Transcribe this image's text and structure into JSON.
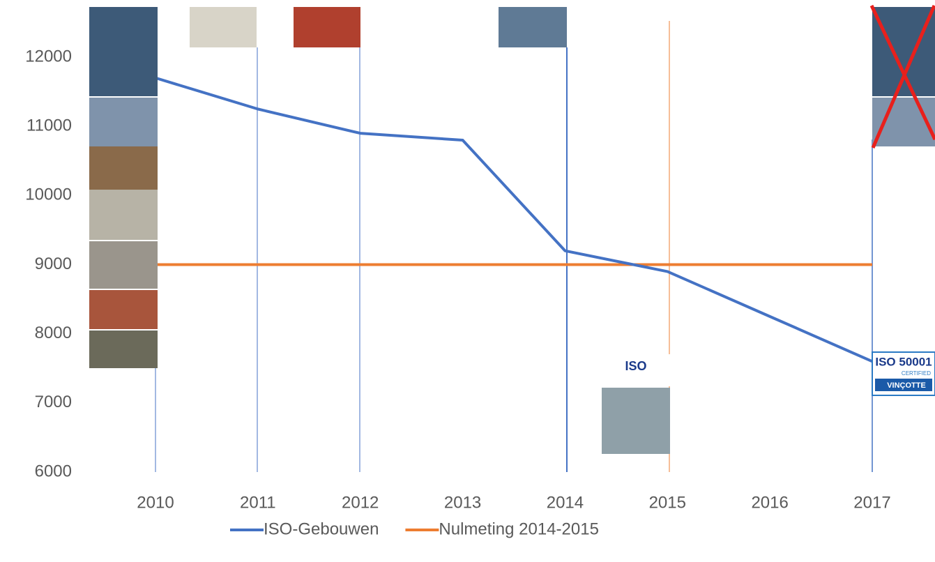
{
  "chart_data": {
    "type": "line",
    "categories": [
      "2010",
      "2011",
      "2012",
      "2013",
      "2014",
      "2015",
      "2016",
      "2017"
    ],
    "series": [
      {
        "name": "ISO-Gebouwen",
        "color": "#4472c4",
        "values": [
          11700,
          11250,
          10900,
          10800,
          9200,
          8900,
          8250,
          7600
        ]
      },
      {
        "name": "Nulmeting 2014-2015",
        "color": "#ed7d31",
        "values": [
          9000,
          9000,
          9000,
          9000,
          9000,
          9000,
          9000,
          9000
        ]
      }
    ],
    "ylim": [
      6000,
      12000
    ],
    "yticks": [
      6000,
      7000,
      8000,
      9000,
      10000,
      11000,
      12000
    ],
    "grid": false,
    "legend": "bottom",
    "annotations": [
      "ISO",
      "ISO 50001",
      "CERTIFIED",
      "VINÇOTTE"
    ]
  }
}
